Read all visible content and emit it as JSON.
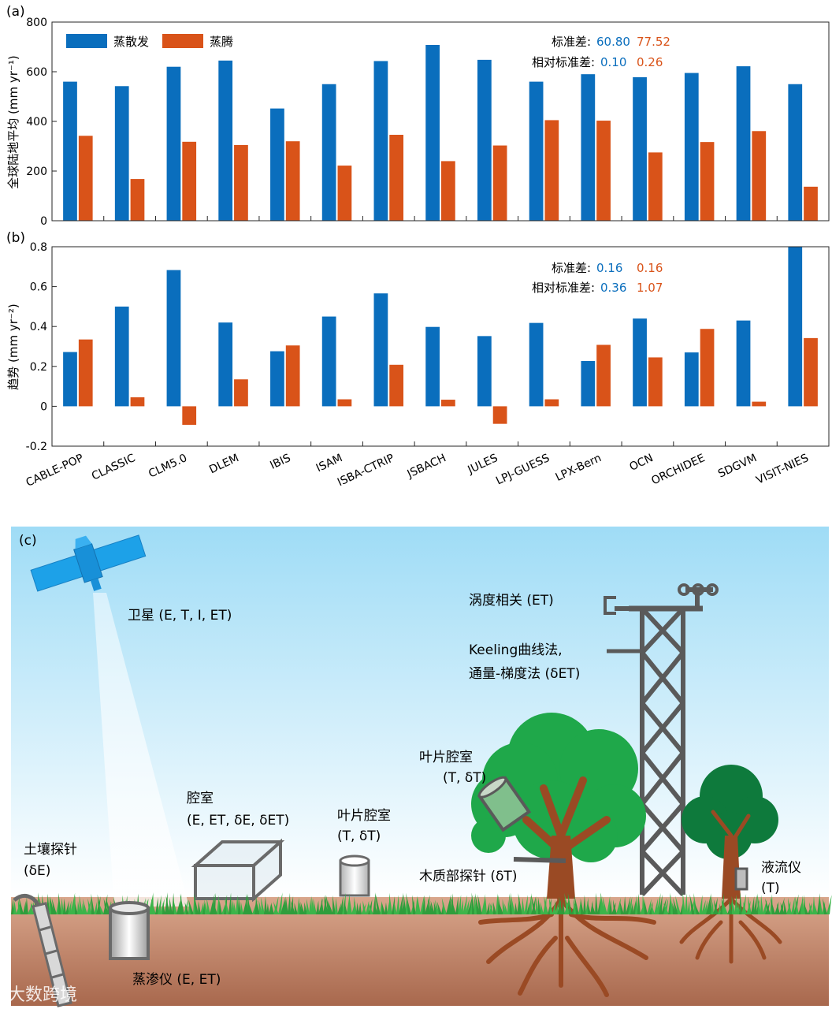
{
  "chart_data": [
    {
      "type": "bar",
      "panel_label": "(a)",
      "categories": [
        "CABLE-POP",
        "CLASSIC",
        "CLM5.0",
        "DLEM",
        "IBIS",
        "ISAM",
        "ISBA-CTRIP",
        "JSBACH",
        "JULES",
        "LPJ-GUESS",
        "LPX-Bern",
        "OCN",
        "ORCHIDEE",
        "SDGVM",
        "VISIT-NIES"
      ],
      "series": [
        {
          "name": "蒸散发",
          "color": "#0a6ebd",
          "values": [
            560,
            542,
            620,
            645,
            452,
            550,
            643,
            708,
            648,
            560,
            590,
            578,
            595,
            622,
            550
          ]
        },
        {
          "name": "蒸腾",
          "color": "#d95319",
          "values": [
            342,
            168,
            318,
            305,
            320,
            222,
            346,
            240,
            303,
            405,
            403,
            275,
            317,
            361,
            137
          ]
        }
      ],
      "ylabel": "全球陆地平均 (mm yr⁻¹)",
      "ylim": [
        0,
        800
      ],
      "yticks": [
        "0",
        "200",
        "400",
        "600",
        "800"
      ],
      "legend_position": "top-left",
      "stats": {
        "std_label": "标准差:",
        "std_values": [
          "60.80",
          "77.52"
        ],
        "rel_label": "相对标准差:",
        "rel_values": [
          "0.10",
          "0.26"
        ]
      }
    },
    {
      "type": "bar",
      "panel_label": "(b)",
      "categories": [
        "CABLE-POP",
        "CLASSIC",
        "CLM5.0",
        "DLEM",
        "IBIS",
        "ISAM",
        "ISBA-CTRIP",
        "JSBACH",
        "JULES",
        "LPJ-GUESS",
        "LPX-Bern",
        "OCN",
        "ORCHIDEE",
        "SDGVM",
        "VISIT-NIES"
      ],
      "series": [
        {
          "name": "蒸散发",
          "color": "#0a6ebd",
          "values": [
            0.272,
            0.5,
            0.683,
            0.42,
            0.276,
            0.45,
            0.566,
            0.398,
            0.352,
            0.418,
            0.227,
            0.44,
            0.27,
            0.43,
            0.8
          ]
        },
        {
          "name": "蒸腾",
          "color": "#d95319",
          "values": [
            0.335,
            0.045,
            -0.093,
            0.135,
            0.305,
            0.035,
            0.208,
            0.033,
            -0.088,
            0.035,
            0.308,
            0.245,
            0.388,
            0.023,
            0.342
          ]
        }
      ],
      "ylabel": "趋势 (mm yr⁻²)",
      "ylim": [
        -0.2,
        0.8
      ],
      "yticks": [
        "-0.2",
        "0",
        "0.2",
        "0.4",
        "0.6",
        "0.8"
      ],
      "stats": {
        "std_label": "标准差:",
        "std_values": [
          "0.16",
          "0.16"
        ],
        "rel_label": "相对标准差:",
        "rel_values": [
          "0.36",
          "1.07"
        ]
      }
    }
  ],
  "illustration": {
    "panel_label": "(c)",
    "labels": {
      "satellite": "卫星 (E, T, I, ET)",
      "eddy": "涡度相关 (ET)",
      "keeling1": "Keeling曲线法,",
      "keeling2": "通量-梯度法 (δET)",
      "leaf_chamber_tree": "叶片腔室",
      "leaf_chamber_tree_sub": "(T, δT)",
      "chamber": "腔室",
      "chamber_sub": "(E, ET, δE, δET)",
      "leaf_chamber": "叶片腔室",
      "leaf_chamber_sub": "(T, δT)",
      "soil_probe": "土壤探针",
      "soil_probe_sub": "(δE)",
      "xylem_probe": "木质部探针 (δT)",
      "sap_flow": "液流仪",
      "sap_flow_sub": "(T)",
      "lysimeter": "蒸渗仪 (E, ET)"
    }
  },
  "watermark": "大数跨境"
}
